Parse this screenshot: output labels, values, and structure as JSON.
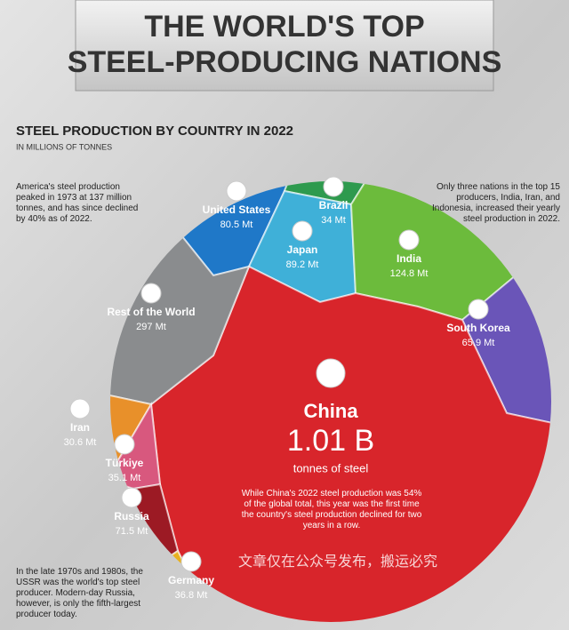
{
  "chart_data": {
    "type": "voronoi",
    "title_lines": [
      "THE WORLD'S TOP",
      "STEEL-PRODUCING NATIONS"
    ],
    "subtitle": "STEEL PRODUCTION BY COUNTRY IN 2022",
    "unit_note": "IN MILLIONS OF TONNES",
    "categories": [
      "United States",
      "Brazil",
      "Japan",
      "India",
      "South Korea",
      "China",
      "Rest of the World",
      "Iran",
      "Türkiye",
      "Russia",
      "Germany"
    ],
    "values": [
      80.5,
      34,
      89.2,
      124.8,
      65.9,
      1010,
      297,
      30.6,
      35.1,
      71.5,
      36.8
    ],
    "value_labels": [
      "80.5 Mt",
      "34 Mt",
      "89.2 Mt",
      "124.8 Mt",
      "65.9 Mt",
      "1.01 B",
      "297 Mt",
      "30.6 Mt",
      "35.1 Mt",
      "71.5 Mt",
      "36.8 Mt"
    ],
    "colors": [
      "#1f78c8",
      "#2e9a4e",
      "#3fb0d8",
      "#6cbb3c",
      "#6a55b8",
      "#d8252b",
      "#8a8c8e",
      "#e8902a",
      "#d8587e",
      "#9c1a24",
      "#e8b020"
    ],
    "china_caption": "tonnes of steel",
    "china_note": "While China's 2022 steel production was 54% of the global total, this year was the first time the country's steel production declined for two years in a row.",
    "annotations": [
      "America's steel production peaked in 1973 at 137 million tonnes, and has since declined by 40% as of 2022.",
      "Only three nations in the top 15 producers, India, Iran, and Indonesia, increased their yearly steel production in 2022.",
      "In the late 1970s and 1980s, the USSR was the world's top steel producer. Modern-day Russia, however, is only the fifth-largest producer today."
    ],
    "watermark": "文章仅在公众号发布，搬运必究"
  }
}
